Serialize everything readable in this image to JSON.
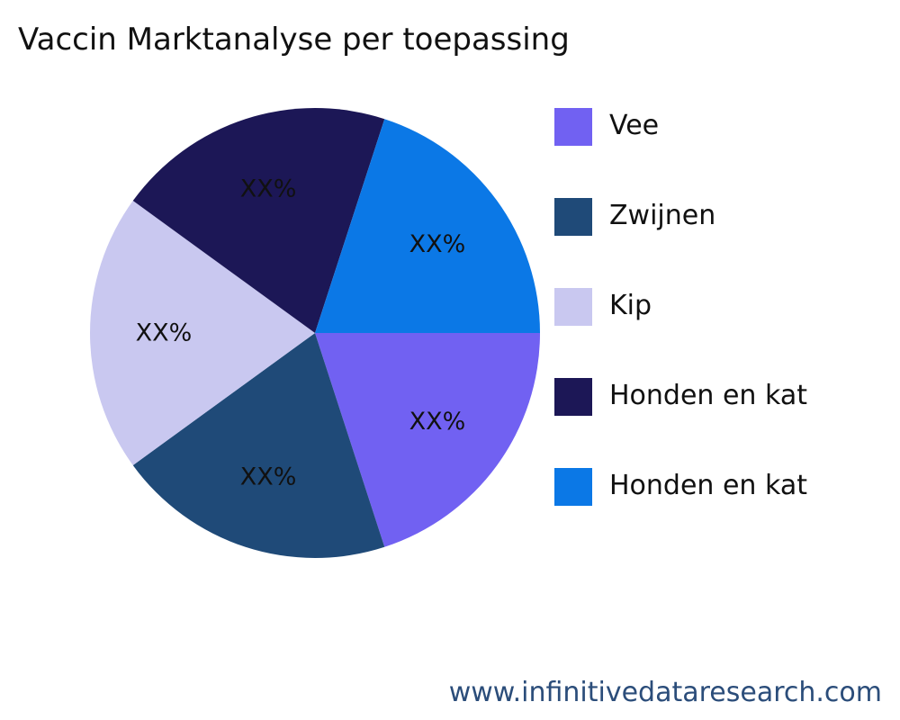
{
  "chart_data": {
    "type": "pie",
    "title": "Vaccin Marktanalyse per toepassing",
    "categories": [
      "Vee",
      "Zwijnen",
      "Kip",
      "Honden en kat",
      "Honden en kat"
    ],
    "values": [
      20,
      20,
      20,
      20,
      20
    ],
    "data_labels": [
      "XX%",
      "XX%",
      "XX%",
      "XX%",
      "XX%"
    ],
    "colors": [
      "#7161f2",
      "#1f4a78",
      "#c9c8f0",
      "#1c1756",
      "#0b78e6"
    ],
    "start_angle_deg": 0,
    "direction": "clockwise",
    "legend_position": "right"
  },
  "footer": {
    "url": "www.infinitivedataresearch.com"
  }
}
